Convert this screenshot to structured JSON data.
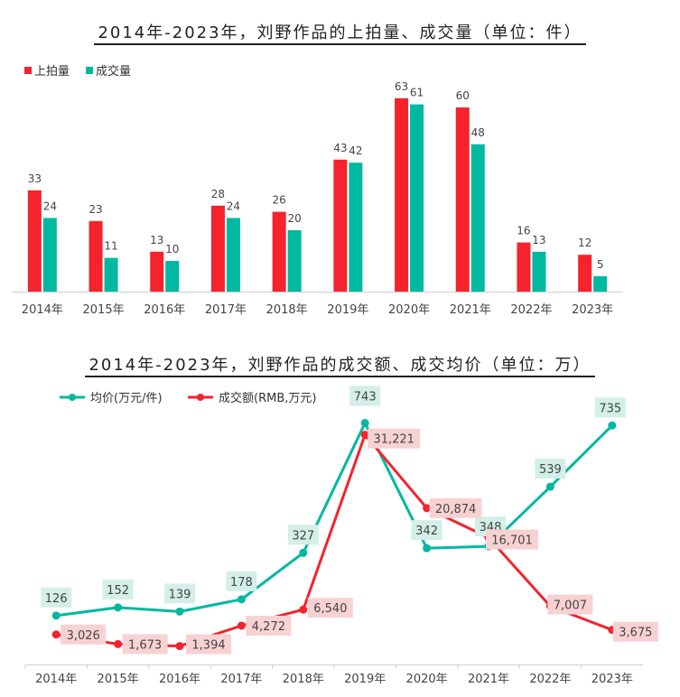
{
  "chart_data": [
    {
      "type": "bar",
      "title": "2014年-2023年，刘野作品的上拍量、成交量（单位：件）",
      "categories": [
        "2014年",
        "2015年",
        "2016年",
        "2017年",
        "2018年",
        "2019年",
        "2020年",
        "2021年",
        "2022年",
        "2023年"
      ],
      "series": [
        {
          "name": "上拍量",
          "color": "#f4232d",
          "values": [
            33,
            23,
            13,
            28,
            26,
            43,
            63,
            60,
            16,
            12
          ]
        },
        {
          "name": "成交量",
          "color": "#00b9a0",
          "values": [
            24,
            11,
            10,
            24,
            20,
            42,
            61,
            48,
            13,
            5
          ]
        }
      ],
      "legend": "top-left",
      "ylim": [
        0,
        70
      ]
    },
    {
      "type": "line",
      "title": "2014年-2023年，刘野作品的成交额、成交均价（单位：万）",
      "categories": [
        "2014年",
        "2015年",
        "2016年",
        "2017年",
        "2018年",
        "2019年",
        "2020年",
        "2021年",
        "2022年",
        "2023年"
      ],
      "series": [
        {
          "name": "均价(万元/件)",
          "color": "#00b9a0",
          "label_bg": "#d3efe8",
          "values": [
            126,
            152,
            139,
            178,
            327,
            743,
            342,
            348,
            539,
            735
          ],
          "labels": [
            "126",
            "152",
            "139",
            "178",
            "327",
            "743",
            "342",
            "348",
            "539",
            "735"
          ]
        },
        {
          "name": "成交额(RMB,万元)",
          "color": "#f4232d",
          "label_bg": "#f8d2d3",
          "values": [
            3026,
            1673,
            1394,
            4272,
            6540,
            31221,
            20874,
            16701,
            7007,
            3675
          ],
          "labels": [
            "3,026",
            "1,673",
            "1,394",
            "4,272",
            "6,540",
            "31,221",
            "20,874",
            "16,701",
            "7,007",
            "3,675"
          ]
        }
      ],
      "legend": "top-left"
    }
  ]
}
